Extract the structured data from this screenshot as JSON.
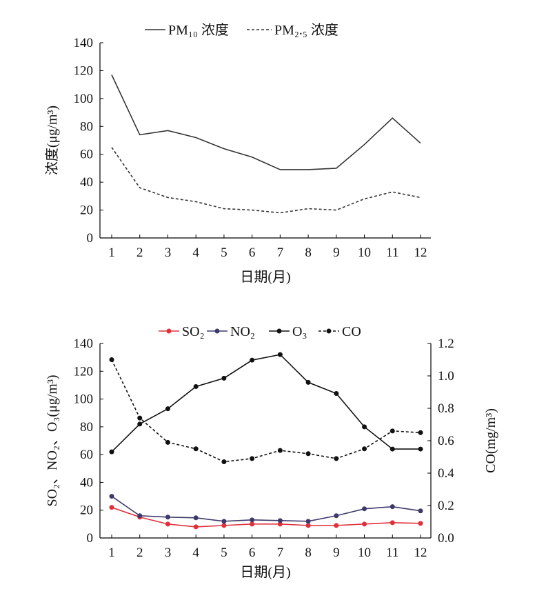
{
  "chart_data": [
    {
      "type": "line",
      "title": "",
      "xlabel": "日期(月)",
      "ylabel": "浓度(μg/m³)",
      "categories": [
        "1",
        "2",
        "3",
        "4",
        "5",
        "6",
        "7",
        "8",
        "9",
        "10",
        "11",
        "12"
      ],
      "ylim": [
        0,
        140
      ],
      "yticks": [
        0,
        20,
        40,
        60,
        80,
        100,
        120,
        140
      ],
      "grid": false,
      "legend": "top",
      "series": [
        {
          "name": "PM₁₀ 浓度",
          "style": "solid",
          "color": "#333333",
          "values": [
            117,
            74,
            77,
            72,
            64,
            58,
            49,
            49,
            50,
            67,
            86,
            68
          ]
        },
        {
          "name": "PM₂.₅ 浓度",
          "style": "dashed",
          "color": "#333333",
          "values": [
            65,
            36,
            29,
            26,
            21,
            20,
            18,
            21,
            20,
            28,
            33,
            29
          ]
        }
      ]
    },
    {
      "type": "line",
      "title": "",
      "xlabel": "日期(月)",
      "ylabel": "SO₂、NO₂、O₃(μg/m³)",
      "y2label": "CO(mg/m³)",
      "categories": [
        "1",
        "2",
        "3",
        "4",
        "5",
        "6",
        "7",
        "8",
        "9",
        "10",
        "11",
        "12"
      ],
      "ylim": [
        0,
        140
      ],
      "yticks": [
        0,
        20,
        40,
        60,
        80,
        100,
        120,
        140
      ],
      "y2lim": [
        0,
        1.2
      ],
      "y2ticks": [
        "0.0",
        "0.2",
        "0.4",
        "0.6",
        "0.8",
        "1.0",
        "1.2"
      ],
      "grid": false,
      "legend": "top",
      "series": [
        {
          "name": "SO₂",
          "axis": "left",
          "style": "solid",
          "color": "#e0303a",
          "values": [
            22,
            15,
            10,
            8,
            9,
            10,
            10,
            9,
            9,
            10,
            11,
            10.5
          ]
        },
        {
          "name": "NO₂",
          "axis": "left",
          "style": "solid",
          "color": "#3d3a6b",
          "values": [
            30,
            16,
            15,
            14.5,
            12,
            13,
            12.5,
            12,
            16,
            21,
            22.5,
            19.5
          ]
        },
        {
          "name": "O₃",
          "axis": "left",
          "style": "solid",
          "color": "#111111",
          "values": [
            62,
            82,
            93,
            109,
            115,
            128,
            132,
            112,
            104,
            80,
            64,
            64
          ]
        },
        {
          "name": "CO",
          "axis": "right",
          "style": "dashed",
          "color": "#111111",
          "values": [
            1.1,
            0.74,
            0.59,
            0.55,
            0.47,
            0.49,
            0.54,
            0.52,
            0.49,
            0.55,
            0.66,
            0.65
          ]
        }
      ]
    }
  ]
}
